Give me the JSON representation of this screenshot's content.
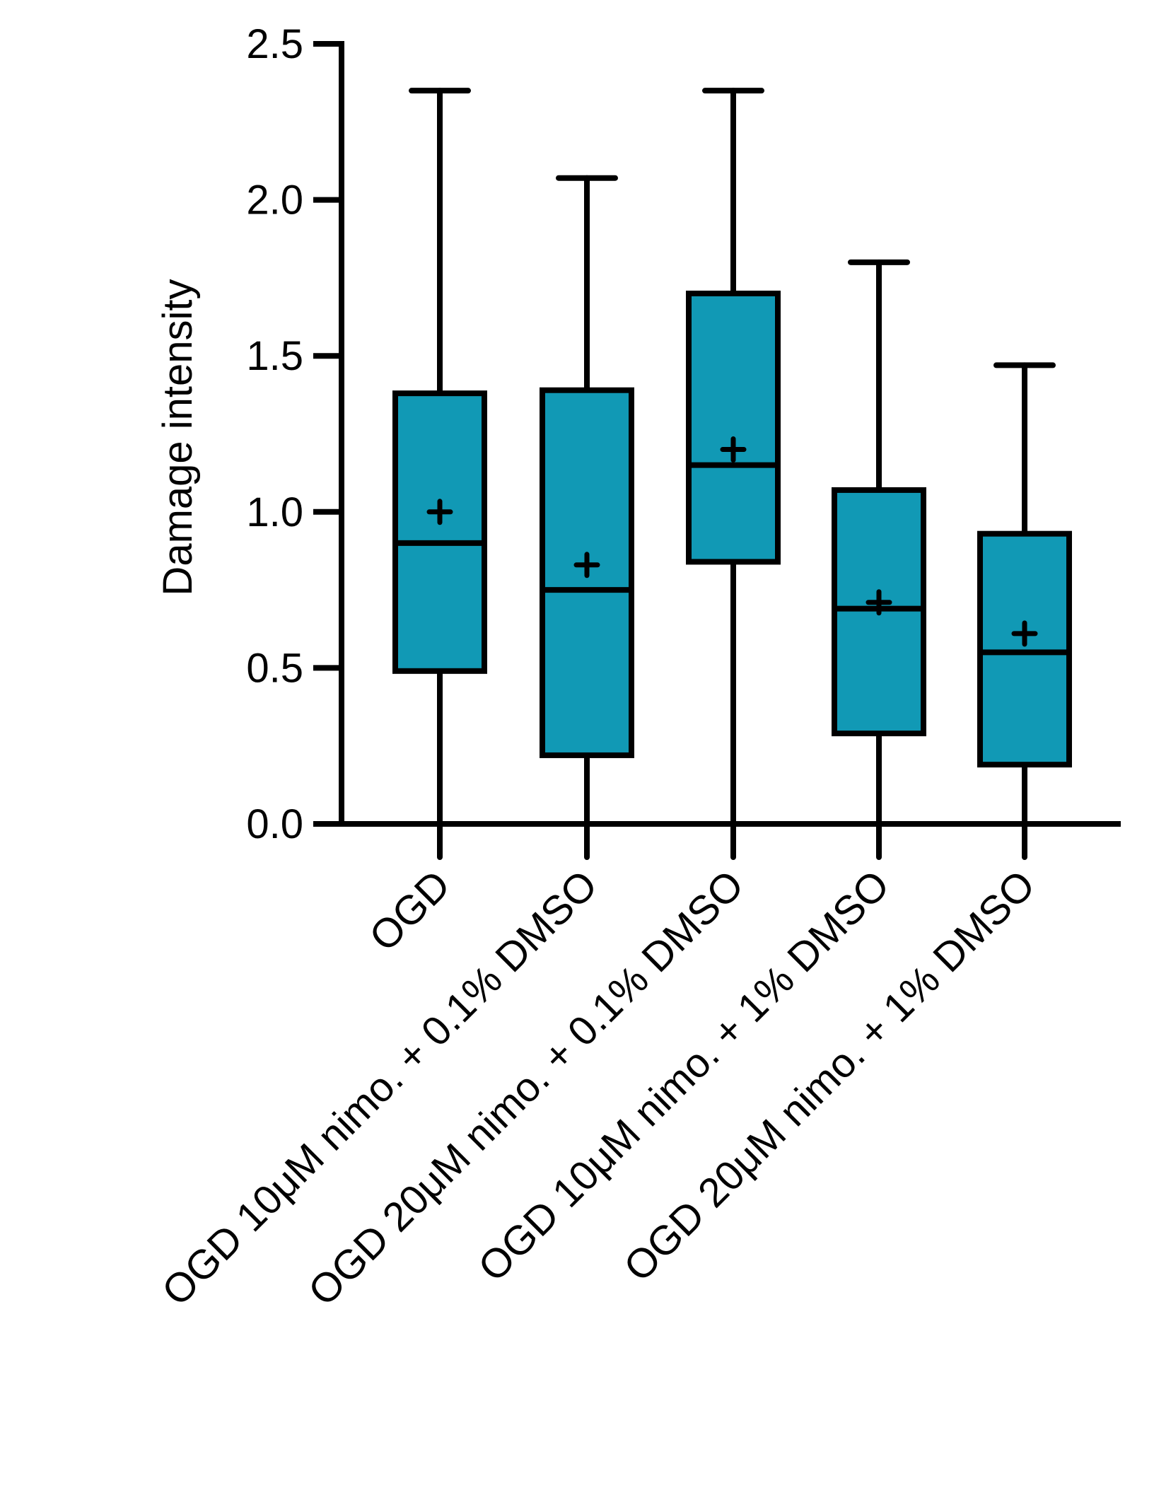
{
  "colors": {
    "box_fill": "#1199b5",
    "stroke": "#000000",
    "background": "#ffffff"
  },
  "chart_data": {
    "type": "box",
    "title": "",
    "xlabel": "",
    "ylabel": "Damage intensity",
    "ylim": [
      0,
      2.5
    ],
    "yticks": [
      0.0,
      0.5,
      1.0,
      1.5,
      2.0,
      2.5
    ],
    "ytick_labels": [
      "0.0",
      "0.5",
      "1.0",
      "1.5",
      "2.0",
      "2.5"
    ],
    "mean_marker": "+",
    "categories": [
      "OGD",
      "OGD 10μM nimo. +  0.1% DMSO",
      "OGD 20μM nimo. + 0.1% DMSO",
      "OGD 10μM nimo. + 1% DMSO",
      "OGD 20μM nimo. + 1% DMSO"
    ],
    "boxes": [
      {
        "min": -0.1,
        "q1": 0.49,
        "median": 0.9,
        "q3": 1.38,
        "max": 2.35,
        "mean": 1.0
      },
      {
        "min": -0.1,
        "q1": 0.22,
        "median": 0.75,
        "q3": 1.39,
        "max": 2.07,
        "mean": 0.83
      },
      {
        "min": -0.1,
        "q1": 0.84,
        "median": 1.15,
        "q3": 1.7,
        "max": 2.35,
        "mean": 1.2
      },
      {
        "min": -0.1,
        "q1": 0.29,
        "median": 0.69,
        "q3": 1.07,
        "max": 1.8,
        "mean": 0.71
      },
      {
        "min": -0.1,
        "q1": 0.19,
        "median": 0.55,
        "q3": 0.93,
        "max": 1.47,
        "mean": 0.61
      }
    ]
  }
}
